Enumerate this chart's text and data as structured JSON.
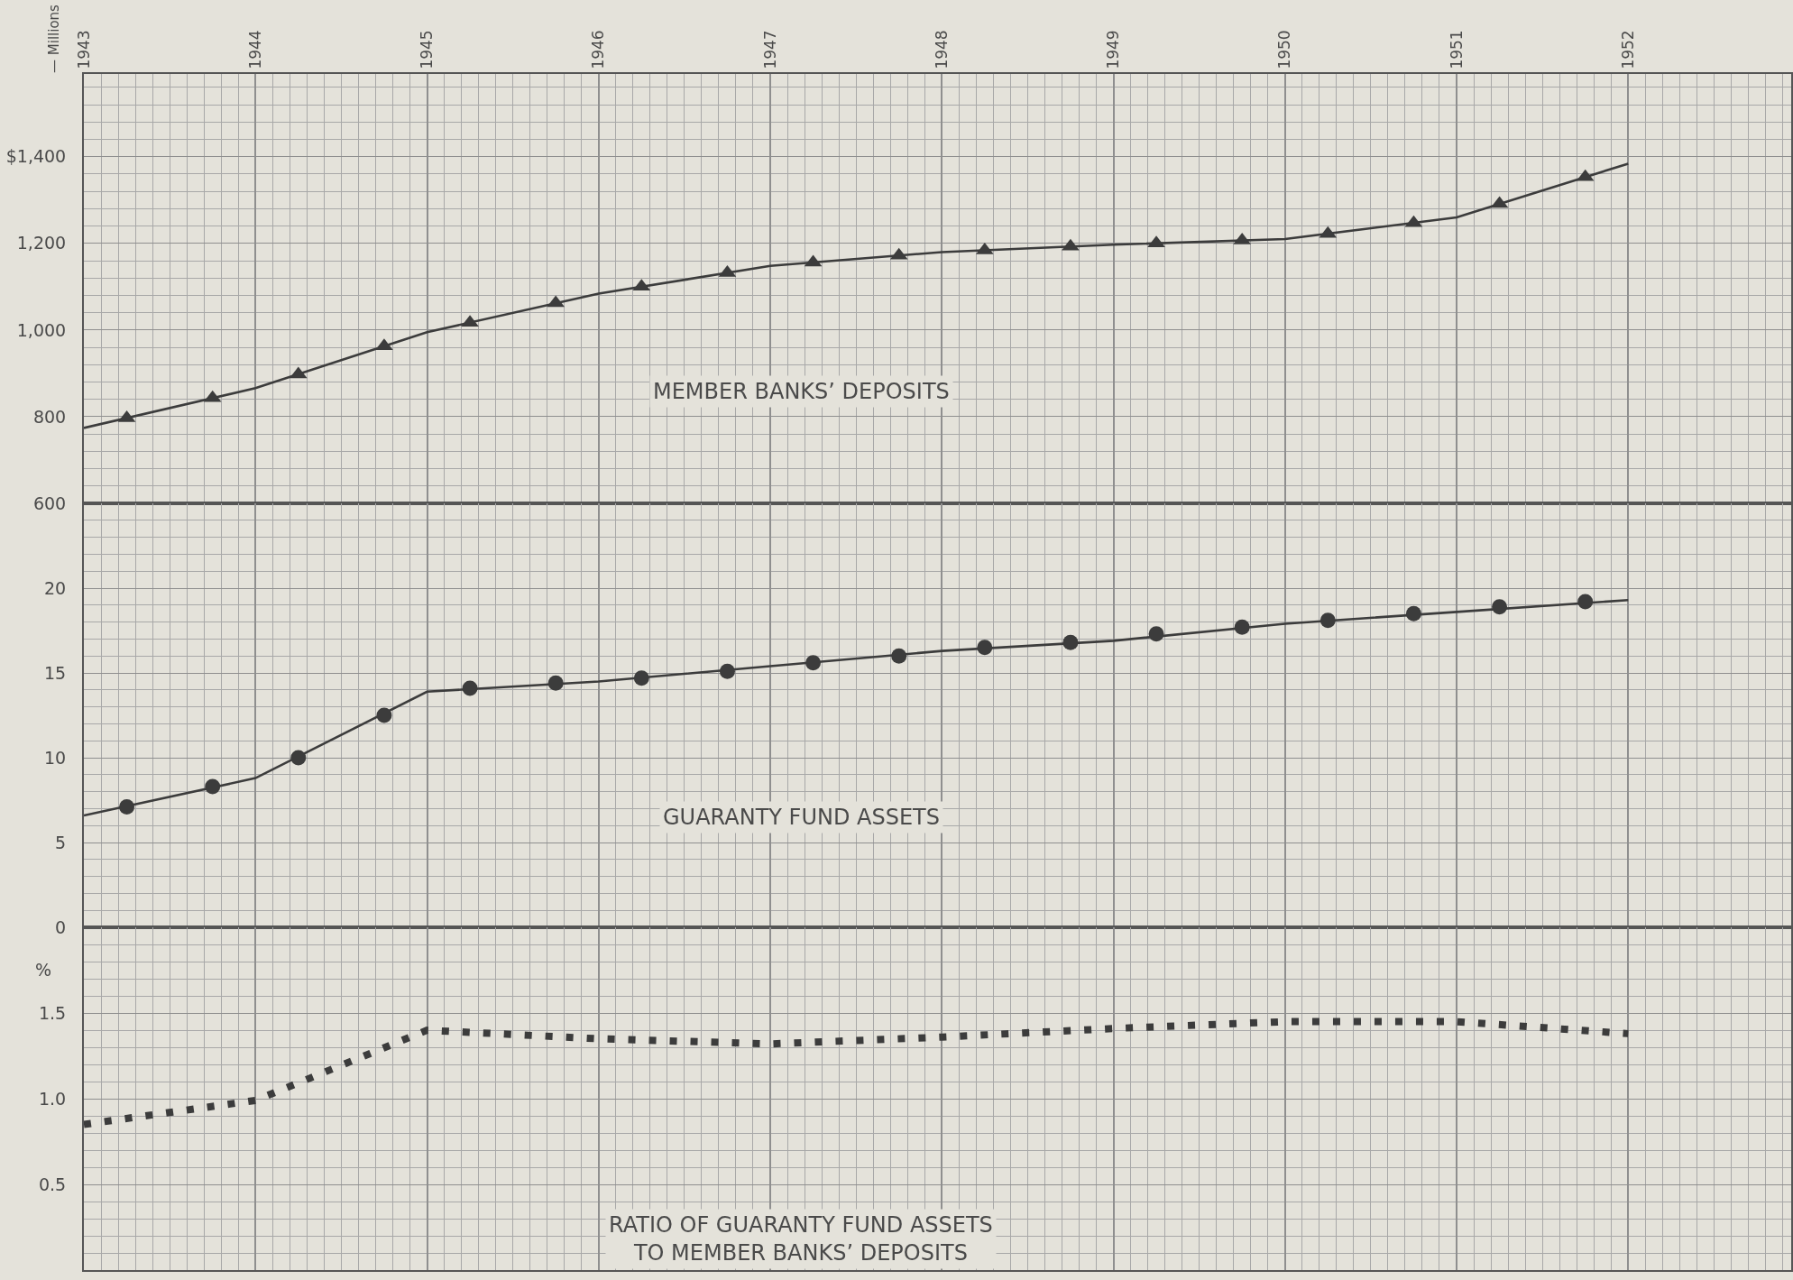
{
  "chart_data": [
    {
      "type": "line",
      "ylabel": "— Millions",
      "xlim": [
        1943,
        1952.95
      ],
      "xticks": [
        1943,
        1944,
        1945,
        1946,
        1947,
        1948,
        1949,
        1950,
        1951,
        1952
      ],
      "ylim": [
        600,
        1591
      ],
      "yticks": [
        600,
        800,
        {
          "value": 1000,
          "label": "1,000"
        },
        {
          "value": 1200,
          "label": "1,200"
        },
        {
          "value": 1400,
          "label": "$1,400"
        }
      ],
      "grid": true,
      "series": [
        {
          "name": "MEMBER BANKS’ DEPOSITS",
          "type": "line",
          "color": "#3c3c3c",
          "x": [
            1943,
            1944,
            1945,
            1946,
            1947,
            1948,
            1949,
            1950,
            1951,
            1952
          ],
          "values": [
            774,
            866,
            995,
            1084,
            1148,
            1180,
            1197,
            1210,
            1260,
            1384
          ]
        },
        {
          "type": "scatter",
          "marker": "triangle",
          "color": "#3c3c3c",
          "x": [
            1943.25,
            1943.75,
            1944.25,
            1944.75,
            1945.25,
            1945.75,
            1946.25,
            1946.75,
            1947.25,
            1947.75,
            1948.25,
            1948.75,
            1949.25,
            1949.75,
            1950.25,
            1950.75,
            1951.25,
            1951.75
          ],
          "values": [
            797,
            843,
            898,
            963,
            1017,
            1062,
            1100,
            1132,
            1156,
            1172,
            1184,
            1193,
            1200,
            1207,
            1222,
            1247,
            1291,
            1353
          ]
        }
      ]
    },
    {
      "type": "line",
      "tick_labels": "y",
      "xlim": [
        1943,
        1952.95
      ],
      "xticks": [
        1943,
        1944,
        1945,
        1946,
        1947,
        1948,
        1949,
        1950,
        1951,
        1952
      ],
      "ylim": [
        0,
        25
      ],
      "yticks": [
        0,
        5,
        10,
        15,
        20
      ],
      "grid": true,
      "series": [
        {
          "name": "GUARANTY FUND ASSETS",
          "type": "line",
          "color": "#3c3c3c",
          "x": [
            1943,
            1944,
            1945,
            1946,
            1947,
            1948,
            1949,
            1950,
            1951,
            1952
          ],
          "values": [
            6.6,
            8.8,
            13.9,
            14.5,
            15.4,
            16.3,
            16.9,
            17.9,
            18.6,
            19.3
          ]
        },
        {
          "type": "scatter",
          "marker": "circle",
          "color": "#3c3c3c",
          "x": [
            1943.25,
            1943.75,
            1944.25,
            1944.75,
            1945.25,
            1945.75,
            1946.25,
            1946.75,
            1947.25,
            1947.75,
            1948.25,
            1948.75,
            1949.25,
            1949.75,
            1950.25,
            1950.75,
            1951.25,
            1951.75
          ],
          "values": [
            7.1,
            8.3,
            10.0,
            12.5,
            14.1,
            14.4,
            14.7,
            15.1,
            15.6,
            16.0,
            16.5,
            16.8,
            17.3,
            17.7,
            18.1,
            18.5,
            18.9,
            19.2
          ]
        }
      ]
    },
    {
      "type": "line",
      "ylabel": "%",
      "tick_labels": "y",
      "xlim": [
        1943,
        1952.95
      ],
      "xticks": [
        1943,
        1944,
        1945,
        1946,
        1947,
        1948,
        1949,
        1950,
        1951,
        1952
      ],
      "ylim": [
        0,
        2
      ],
      "yticks": [
        0.5,
        {
          "value": 1,
          "label": "1.0"
        },
        1.5
      ],
      "grid": true,
      "line_style": "dotted",
      "series": [
        {
          "name": "RATIO OF GUARANTY FUND ASSETS\nTO MEMBER BANKS’ DEPOSITS",
          "color": "#3c3c3c",
          "x": [
            1943,
            1944,
            1945,
            1946,
            1947,
            1948,
            1949,
            1950,
            1951,
            1952
          ],
          "values": [
            0.85,
            0.99,
            1.4,
            1.35,
            1.32,
            1.36,
            1.41,
            1.45,
            1.45,
            1.38
          ]
        }
      ]
    }
  ]
}
